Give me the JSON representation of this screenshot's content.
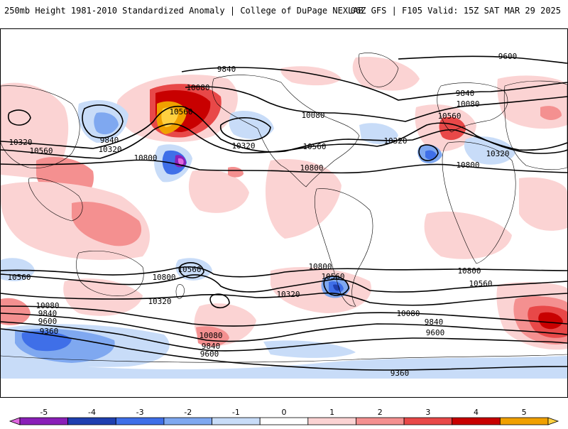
{
  "header": {
    "title_left": "250mb Height 1981-2010 Standardized Anomaly | College of DuPage NEXLAB",
    "title_right": "06Z GFS | F105 Valid: 15Z SAT MAR 29 2025"
  },
  "colorbar": {
    "ticks": [
      "-5",
      "-4",
      "-3",
      "-2",
      "-1",
      "0",
      "1",
      "2",
      "3",
      "4",
      "5"
    ],
    "colors": [
      "#e066e0",
      "#8a1fb8",
      "#1f3fb0",
      "#3f6fe8",
      "#7fa8f0",
      "#c8dcf8",
      "#ffffff",
      "#fbd3d3",
      "#f49090",
      "#e84848",
      "#c80000",
      "#f0a000",
      "#ffd040"
    ]
  },
  "contour_labels": [
    "9840",
    "9600",
    "10080",
    "10560",
    "9840",
    "10320",
    "10560",
    "10320",
    "10320",
    "10080",
    "10560",
    "10320",
    "9840",
    "10080",
    "10560",
    "10320",
    "10800",
    "10800",
    "10800",
    "9840",
    "10320",
    "10560",
    "10800",
    "10560",
    "10320",
    "10800",
    "10560",
    "10800",
    "10560",
    "10080",
    "10320",
    "10080",
    "9840",
    "9600",
    "9360",
    "10080",
    "9840",
    "9600",
    "10560",
    "9840",
    "9600",
    "9360"
  ],
  "palette": {
    "neg1": "#c8dcf8",
    "neg2": "#7fa8f0",
    "neg3": "#3f6fe8",
    "neg4": "#1f3fb0",
    "neg5": "#8a1fb8",
    "pos1": "#fbd3d3",
    "pos2": "#f49090",
    "pos3": "#e84848",
    "pos4": "#c80000",
    "pos5": "#f0a000",
    "pos6": "#ffd040"
  }
}
